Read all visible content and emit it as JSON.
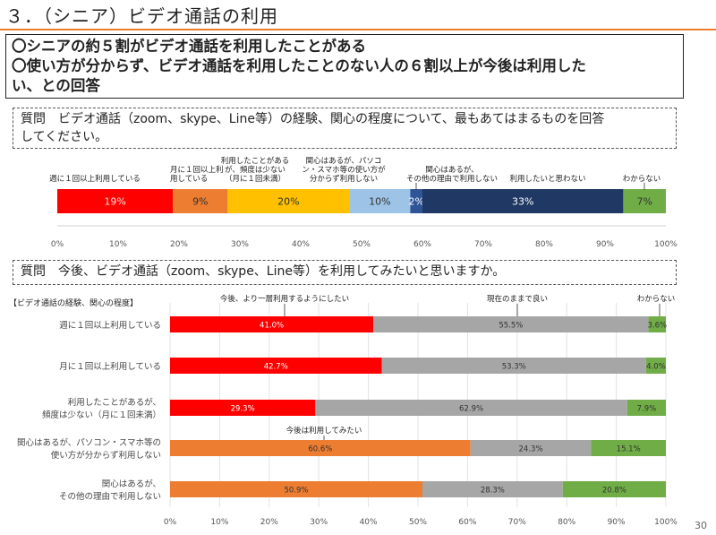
{
  "title": "３．（シニア）ビデオ通話の利用",
  "summary": [
    "〇シニアの約５割がビデオ通話を利用したことがある",
    "〇使い方が分からず、ビデオ通話を利用したことのない人の６割以上が今後は利用した",
    "い、との回答"
  ],
  "question1": [
    "質問　ビデオ通話（zoom、skype、Line等）の経験、関心の程度について、最もあてはまるものを回答",
    "してください。"
  ],
  "question2": "質問　今後、ビデオ通話（zoom、skype、Line等）を利用してみたいと思いますか。",
  "page_number": "30",
  "chart_data": [
    {
      "type": "bar",
      "orientation": "horizontal-stacked",
      "series": [
        {
          "name": "週に１回以上利用している",
          "value": 19,
          "label": "19%",
          "color": "#ff0000"
        },
        {
          "name": "月に１回以上利用している",
          "value": 9,
          "label": "9%",
          "color": "#ed7d31"
        },
        {
          "name": "利用したことがあるが、頻度は少ない（月に１回未満）",
          "value": 20,
          "label": "20%",
          "color": "#ffc000"
        },
        {
          "name": "関心はあるが、パソコン・スマホ等の使い方が分からず利用しない",
          "value": 10,
          "label": "10%",
          "color": "#9dc3e6"
        },
        {
          "name": "関心はあるが、その他の理由で利用しない",
          "value": 2,
          "label": "2%",
          "color": "#2f5597"
        },
        {
          "name": "利用したいと思わない",
          "value": 33,
          "label": "33%",
          "color": "#203864"
        },
        {
          "name": "わからない",
          "value": 7,
          "label": "7%",
          "color": "#70ad47"
        }
      ],
      "category_labels": [
        [
          "週に１回以上利用している"
        ],
        [
          "月に１回以上利",
          "用している"
        ],
        [
          "利用したことがある",
          "が、頻度は少ない",
          "（月に１回未満）"
        ],
        [
          "関心はあるが、パソコ",
          "ン・スマホ等の使い方が",
          "分からず利用しない"
        ],
        [
          "関心はあるが、",
          "その他の理由で利用しない"
        ],
        [
          "利用したいと思わない"
        ],
        [
          "わからない"
        ]
      ],
      "xlim": [
        0,
        100
      ],
      "xticks": [
        "0%",
        "10%",
        "20%",
        "30%",
        "40%",
        "50%",
        "60%",
        "70%",
        "80%",
        "90%",
        "100%"
      ],
      "grid": false
    },
    {
      "type": "bar",
      "orientation": "horizontal-stacked",
      "ylabel": "【ビデオ通話の経験、関心の程度】",
      "categories": [
        [
          "週に１回以上利用している"
        ],
        [
          "月に１回以上利用している"
        ],
        [
          "利用したことがあるが、",
          "頻度は少ない（月に１回未満）"
        ],
        [
          "関心はあるが、パソコン・スマホ等の",
          "使い方が分からず利用しない"
        ],
        [
          "関心はあるが、",
          "その他の理由で利用しない"
        ]
      ],
      "segments": [
        [
          {
            "value": 41.0,
            "label": "41.0%",
            "color": "#ff0000",
            "text_color": "#ffffff"
          },
          {
            "value": 55.5,
            "label": "55.5%",
            "color": "#a6a6a6",
            "text_color": "#333333"
          },
          {
            "value": 3.6,
            "label": "3.6%",
            "color": "#70ad47",
            "text_color": "#333333"
          }
        ],
        [
          {
            "value": 42.7,
            "label": "42.7%",
            "color": "#ff0000",
            "text_color": "#ffffff"
          },
          {
            "value": 53.3,
            "label": "53.3%",
            "color": "#a6a6a6",
            "text_color": "#333333"
          },
          {
            "value": 4.0,
            "label": "4.0%",
            "color": "#70ad47",
            "text_color": "#333333"
          }
        ],
        [
          {
            "value": 29.3,
            "label": "29.3%",
            "color": "#ff0000",
            "text_color": "#ffffff"
          },
          {
            "value": 62.9,
            "label": "62.9%",
            "color": "#a6a6a6",
            "text_color": "#333333"
          },
          {
            "value": 7.9,
            "label": "7.9%",
            "color": "#70ad47",
            "text_color": "#333333"
          }
        ],
        [
          {
            "value": 60.6,
            "label": "60.6%",
            "color": "#ed7d31",
            "text_color": "#333333"
          },
          {
            "value": 24.3,
            "label": "24.3%",
            "color": "#a6a6a6",
            "text_color": "#333333"
          },
          {
            "value": 15.1,
            "label": "15.1%",
            "color": "#70ad47",
            "text_color": "#333333"
          }
        ],
        [
          {
            "value": 50.9,
            "label": "50.9%",
            "color": "#ed7d31",
            "text_color": "#333333"
          },
          {
            "value": 28.3,
            "label": "28.3%",
            "color": "#a6a6a6",
            "text_color": "#333333"
          },
          {
            "value": 20.8,
            "label": "20.8%",
            "color": "#70ad47",
            "text_color": "#333333"
          }
        ]
      ],
      "annotations": [
        "今後、より一層利用するようにしたい",
        "現在のままで良い",
        "わからない",
        "今後は利用してみたい"
      ],
      "xlim": [
        0,
        100
      ],
      "xticks": [
        "0%",
        "10%",
        "20%",
        "30%",
        "40%",
        "50%",
        "60%",
        "70%",
        "80%",
        "90%",
        "100%"
      ],
      "grid": true
    }
  ]
}
